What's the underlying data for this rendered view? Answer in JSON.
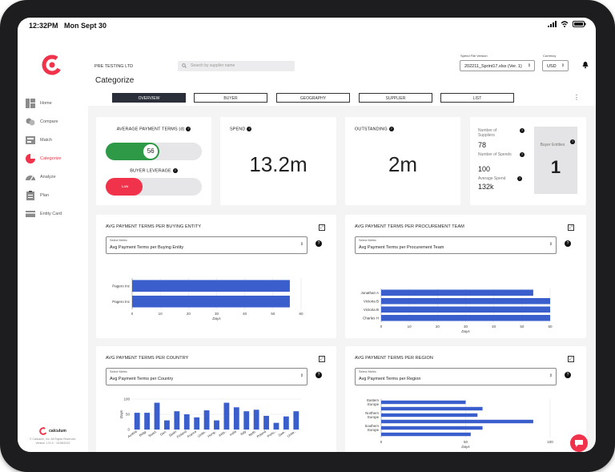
{
  "status_bar": {
    "time": "12:32PM",
    "date": "Mon Sept 30"
  },
  "sidebar": {
    "items": [
      {
        "label": "Home",
        "icon": "home-icon"
      },
      {
        "label": "Compare",
        "icon": "compare-icon"
      },
      {
        "label": "Match",
        "icon": "match-icon"
      },
      {
        "label": "Categorize",
        "icon": "categorize-icon",
        "active": true
      },
      {
        "label": "Analyze",
        "icon": "analyze-icon"
      },
      {
        "label": "Plan",
        "icon": "plan-icon"
      },
      {
        "label": "Entity Card",
        "icon": "entity-card-icon"
      }
    ],
    "footer_brand": "calculum",
    "footer_copyright": "© Calculum, Inc. All Rights Reserved.",
    "footer_version": "Version 1.01.0 · 10/08/2022"
  },
  "header": {
    "company": "PRE TESTING LTD",
    "title": "Categorize",
    "search_placeholder": "Search by supplier name",
    "spend_file_label": "Spend File Version",
    "spend_file_value": "202211_Sprint17.xlsx (Ver. 1)",
    "currency_label": "Currency",
    "currency_value": "USD"
  },
  "tabs": [
    {
      "label": "OVERVIEW",
      "active": true
    },
    {
      "label": "BUYER"
    },
    {
      "label": "GEOGRAPHY"
    },
    {
      "label": "SUPPLIER"
    },
    {
      "label": "LIST"
    }
  ],
  "kpis": {
    "payment_terms": {
      "title": "AVERAGE PAYMENT TERMS (d)",
      "value": "56",
      "fill": 0.56
    },
    "buyer_leverage": {
      "title": "BUYER LEVERAGE",
      "value": "Low",
      "fill": 0.38
    },
    "spend": {
      "title": "SPEND",
      "value": "13.2m"
    },
    "outstanding": {
      "title": "OUTSTANDING",
      "value": "2m"
    },
    "suppliers": {
      "label": "Number of Suppliers",
      "value": "78"
    },
    "spends": {
      "label": "Number of Spends",
      "value": "100"
    },
    "avg_spend": {
      "label": "Average Spend",
      "value": "132k"
    },
    "buyer_entities": {
      "label": "Buyer Entities",
      "value": "1"
    }
  },
  "charts": {
    "buying_entity": {
      "title": "AVG PAYMENT TERMS PER BUYING ENTITY",
      "select_label": "Select Metric",
      "select_value": "Avg Payment Terms per Buying Entity"
    },
    "procurement_team": {
      "title": "AVG PAYMENT TERMS PER PROCUREMENT TEAM",
      "select_label": "Select Metric",
      "select_value": "Avg Payment Terms per Procurement Team"
    },
    "country": {
      "title": "AVG PAYMENT TERMS PER COUNTRY",
      "select_label": "Select Metric",
      "select_value": "Avg Payment Terms per Country"
    },
    "region": {
      "title": "AVG PAYMENT TERMS PER REGION",
      "select_label": "Select Metric",
      "select_value": "Avg Payment Terms per Region"
    }
  },
  "chart_data": [
    {
      "id": "buying_entity",
      "type": "bar",
      "orientation": "horizontal",
      "categories": [
        "Pagero Inc",
        "Pagero Inc"
      ],
      "values": [
        56,
        56
      ],
      "xlabel": "Days",
      "xlim": [
        0,
        60
      ],
      "xticks": [
        0,
        10,
        20,
        30,
        40,
        50,
        60
      ],
      "grid": true,
      "color": "#3a5fcd"
    },
    {
      "id": "procurement_team",
      "type": "bar",
      "orientation": "horizontal",
      "categories": [
        "Jonathan A",
        "Victoria B",
        "Victoria B",
        "Charles H"
      ],
      "values": [
        54,
        60,
        60,
        60
      ],
      "xlabel": "Days",
      "xlim": [
        0,
        60
      ],
      "xticks": [
        0,
        10,
        20,
        30,
        40,
        50,
        60
      ],
      "grid": true,
      "color": "#3a5fcd"
    },
    {
      "id": "country",
      "type": "bar",
      "orientation": "vertical",
      "categories": [
        "Austria",
        "Belgi.",
        "Swed.",
        "Den.",
        "Spain",
        "Finland",
        "France",
        "Unite..",
        "Hung..",
        "Irela..",
        "India",
        "Italy",
        "Neth.",
        "Poland",
        "Portu..",
        "Swe..",
        "Unite.."
      ],
      "values": [
        55,
        55,
        88,
        30,
        60,
        50,
        40,
        63,
        30,
        88,
        73,
        60,
        65,
        45,
        22,
        43,
        60
      ],
      "ylabel": "Days",
      "ylim": [
        0,
        100
      ],
      "yticks": [
        0,
        50,
        100
      ],
      "grid": true,
      "color": "#3a5fcd"
    },
    {
      "id": "region",
      "type": "bar",
      "orientation": "horizontal",
      "categories": [
        "Eastern Europe",
        "",
        "Northern Europe",
        "",
        "Southern Europe",
        ""
      ],
      "values": [
        50,
        60,
        57,
        90,
        60,
        53
      ],
      "xlabel": "Days",
      "xlim": [
        0,
        100
      ],
      "xticks": [
        0,
        50,
        100
      ],
      "grid": true,
      "color": "#3a5fcd"
    }
  ]
}
